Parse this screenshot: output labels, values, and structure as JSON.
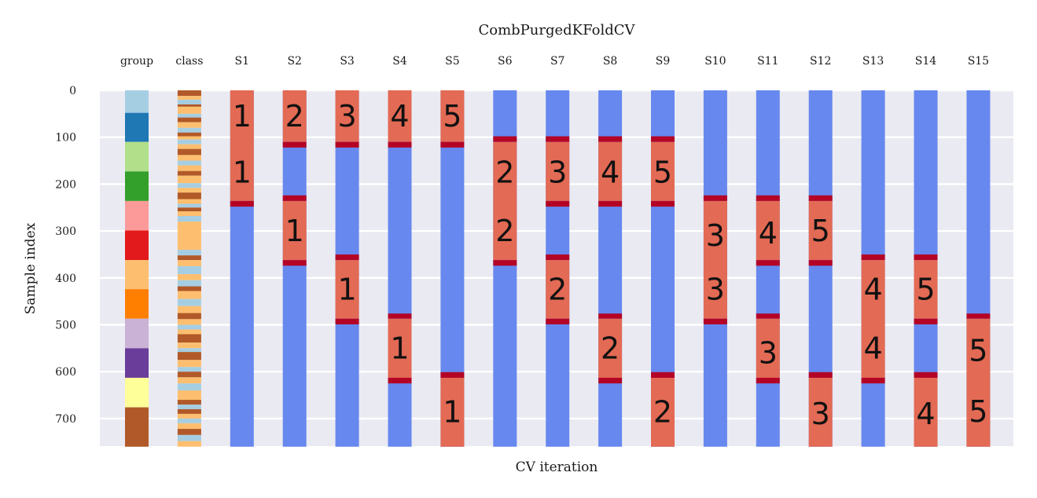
{
  "chart_data": {
    "type": "heatmap",
    "title": "CombPurgedKFoldCV",
    "xlabel": "CV iteration",
    "ylabel": "Sample index",
    "ylim": [
      0,
      760
    ],
    "y_ticks": [
      0,
      100,
      200,
      300,
      400,
      500,
      600,
      700
    ],
    "grid": true,
    "n_samples": 760,
    "group_column": {
      "label": "group",
      "bounds": [
        0,
        48,
        110,
        173,
        236,
        299,
        362,
        424,
        487,
        550,
        613,
        676,
        760
      ],
      "colors": [
        "#a6cee3",
        "#1f78b4",
        "#b2df8a",
        "#33a02c",
        "#fb9a99",
        "#e31a1c",
        "#fdbf6f",
        "#ff7f00",
        "#cab2d6",
        "#6a3d9a",
        "#ffff99",
        "#b15928"
      ]
    },
    "class_column": {
      "label": "class",
      "class_colors": [
        "#fdbf6f",
        "#a6cee3",
        "#b15928"
      ],
      "segments": [
        [
          0,
          12,
          2
        ],
        [
          12,
          20,
          0
        ],
        [
          20,
          30,
          1
        ],
        [
          30,
          35,
          2
        ],
        [
          35,
          50,
          0
        ],
        [
          50,
          58,
          1
        ],
        [
          58,
          68,
          2
        ],
        [
          68,
          80,
          0
        ],
        [
          80,
          90,
          1
        ],
        [
          90,
          98,
          2
        ],
        [
          98,
          105,
          0
        ],
        [
          105,
          115,
          1
        ],
        [
          115,
          125,
          0
        ],
        [
          125,
          138,
          2
        ],
        [
          138,
          150,
          0
        ],
        [
          150,
          160,
          1
        ],
        [
          160,
          172,
          0
        ],
        [
          172,
          182,
          2
        ],
        [
          182,
          198,
          0
        ],
        [
          198,
          208,
          1
        ],
        [
          208,
          218,
          0
        ],
        [
          218,
          232,
          2
        ],
        [
          232,
          242,
          0
        ],
        [
          242,
          250,
          1
        ],
        [
          250,
          258,
          2
        ],
        [
          258,
          268,
          0
        ],
        [
          268,
          280,
          1
        ],
        [
          280,
          340,
          0
        ],
        [
          340,
          352,
          1
        ],
        [
          352,
          362,
          2
        ],
        [
          362,
          375,
          0
        ],
        [
          375,
          392,
          1
        ],
        [
          392,
          405,
          0
        ],
        [
          405,
          418,
          1
        ],
        [
          418,
          428,
          2
        ],
        [
          428,
          445,
          0
        ],
        [
          445,
          460,
          1
        ],
        [
          460,
          475,
          0
        ],
        [
          475,
          488,
          2
        ],
        [
          488,
          500,
          0
        ],
        [
          500,
          510,
          1
        ],
        [
          510,
          520,
          0
        ],
        [
          520,
          538,
          2
        ],
        [
          538,
          550,
          0
        ],
        [
          550,
          558,
          1
        ],
        [
          558,
          575,
          2
        ],
        [
          575,
          590,
          0
        ],
        [
          590,
          600,
          1
        ],
        [
          600,
          612,
          2
        ],
        [
          612,
          625,
          0
        ],
        [
          625,
          640,
          1
        ],
        [
          640,
          660,
          0
        ],
        [
          660,
          670,
          2
        ],
        [
          670,
          680,
          1
        ],
        [
          680,
          690,
          2
        ],
        [
          690,
          700,
          0
        ],
        [
          700,
          710,
          1
        ],
        [
          710,
          722,
          0
        ],
        [
          722,
          735,
          2
        ],
        [
          735,
          748,
          1
        ],
        [
          748,
          760,
          0
        ]
      ]
    },
    "split_colors": {
      "train": "#6788ee",
      "test": "#e36a54",
      "purge": "#b40426"
    },
    "splits": [
      {
        "label": "S1",
        "tests": [
          [
            0,
            236,
            1
          ],
          [
            236,
            248,
            "purge"
          ]
        ],
        "fold_labels": [
          {
            "y": 55,
            "text": "1"
          },
          {
            "y": 175,
            "text": "1"
          }
        ]
      },
      {
        "label": "S2",
        "tests": [
          [
            0,
            110,
            2
          ],
          [
            110,
            122,
            "purge"
          ],
          [
            224,
            236,
            "purge"
          ],
          [
            236,
            362,
            1
          ],
          [
            362,
            374,
            "purge"
          ]
        ],
        "fold_labels": [
          {
            "y": 55,
            "text": "2"
          },
          {
            "y": 300,
            "text": "1"
          }
        ]
      },
      {
        "label": "S3",
        "tests": [
          [
            0,
            110,
            3
          ],
          [
            110,
            122,
            "purge"
          ],
          [
            350,
            362,
            "purge"
          ],
          [
            362,
            487,
            1
          ],
          [
            487,
            499,
            "purge"
          ]
        ],
        "fold_labels": [
          {
            "y": 55,
            "text": "3"
          },
          {
            "y": 425,
            "text": "1"
          }
        ]
      },
      {
        "label": "S4",
        "tests": [
          [
            0,
            110,
            4
          ],
          [
            110,
            122,
            "purge"
          ],
          [
            476,
            487,
            "purge"
          ],
          [
            487,
            613,
            1
          ],
          [
            613,
            625,
            "purge"
          ]
        ],
        "fold_labels": [
          {
            "y": 55,
            "text": "4"
          },
          {
            "y": 550,
            "text": "1"
          }
        ]
      },
      {
        "label": "S5",
        "tests": [
          [
            0,
            110,
            5
          ],
          [
            110,
            122,
            "purge"
          ],
          [
            601,
            613,
            "purge"
          ],
          [
            613,
            760,
            1
          ]
        ],
        "fold_labels": [
          {
            "y": 55,
            "text": "5"
          },
          {
            "y": 686,
            "text": "1"
          }
        ]
      },
      {
        "label": "S6",
        "tests": [
          [
            98,
            110,
            "purge"
          ],
          [
            110,
            362,
            2
          ],
          [
            362,
            374,
            "purge"
          ]
        ],
        "fold_labels": [
          {
            "y": 175,
            "text": "2"
          },
          {
            "y": 300,
            "text": "2"
          }
        ]
      },
      {
        "label": "S7",
        "tests": [
          [
            98,
            110,
            "purge"
          ],
          [
            110,
            236,
            3
          ],
          [
            236,
            248,
            "purge"
          ],
          [
            350,
            362,
            "purge"
          ],
          [
            362,
            487,
            2
          ],
          [
            487,
            499,
            "purge"
          ]
        ],
        "fold_labels": [
          {
            "y": 175,
            "text": "3"
          },
          {
            "y": 425,
            "text": "2"
          }
        ]
      },
      {
        "label": "S8",
        "tests": [
          [
            98,
            110,
            "purge"
          ],
          [
            110,
            236,
            4
          ],
          [
            236,
            248,
            "purge"
          ],
          [
            476,
            487,
            "purge"
          ],
          [
            487,
            613,
            2
          ],
          [
            613,
            625,
            "purge"
          ]
        ],
        "fold_labels": [
          {
            "y": 175,
            "text": "4"
          },
          {
            "y": 550,
            "text": "2"
          }
        ]
      },
      {
        "label": "S9",
        "tests": [
          [
            98,
            110,
            "purge"
          ],
          [
            110,
            236,
            5
          ],
          [
            236,
            248,
            "purge"
          ],
          [
            601,
            613,
            "purge"
          ],
          [
            613,
            760,
            2
          ]
        ],
        "fold_labels": [
          {
            "y": 175,
            "text": "5"
          },
          {
            "y": 686,
            "text": "2"
          }
        ]
      },
      {
        "label": "S10",
        "tests": [
          [
            224,
            236,
            "purge"
          ],
          [
            236,
            487,
            3
          ],
          [
            487,
            499,
            "purge"
          ]
        ],
        "fold_labels": [
          {
            "y": 310,
            "text": "3"
          },
          {
            "y": 425,
            "text": "3"
          }
        ]
      },
      {
        "label": "S11",
        "tests": [
          [
            224,
            236,
            "purge"
          ],
          [
            236,
            362,
            4
          ],
          [
            362,
            374,
            "purge"
          ],
          [
            476,
            487,
            "purge"
          ],
          [
            487,
            613,
            3
          ],
          [
            613,
            625,
            "purge"
          ]
        ],
        "fold_labels": [
          {
            "y": 305,
            "text": "4"
          },
          {
            "y": 560,
            "text": "3"
          }
        ]
      },
      {
        "label": "S12",
        "tests": [
          [
            224,
            236,
            "purge"
          ],
          [
            236,
            362,
            5
          ],
          [
            362,
            374,
            "purge"
          ],
          [
            601,
            613,
            "purge"
          ],
          [
            613,
            760,
            3
          ]
        ],
        "fold_labels": [
          {
            "y": 300,
            "text": "5"
          },
          {
            "y": 690,
            "text": "3"
          }
        ]
      },
      {
        "label": "S13",
        "tests": [
          [
            350,
            362,
            "purge"
          ],
          [
            362,
            613,
            4
          ],
          [
            613,
            625,
            "purge"
          ]
        ],
        "fold_labels": [
          {
            "y": 425,
            "text": "4"
          },
          {
            "y": 550,
            "text": "4"
          }
        ]
      },
      {
        "label": "S14",
        "tests": [
          [
            350,
            362,
            "purge"
          ],
          [
            362,
            487,
            5
          ],
          [
            487,
            499,
            "purge"
          ],
          [
            601,
            613,
            "purge"
          ],
          [
            613,
            760,
            4
          ]
        ],
        "fold_labels": [
          {
            "y": 425,
            "text": "5"
          },
          {
            "y": 690,
            "text": "4"
          }
        ]
      },
      {
        "label": "S15",
        "tests": [
          [
            476,
            487,
            "purge"
          ],
          [
            487,
            760,
            5
          ]
        ],
        "fold_labels": [
          {
            "y": 555,
            "text": "5"
          },
          {
            "y": 685,
            "text": "5"
          }
        ]
      }
    ]
  }
}
